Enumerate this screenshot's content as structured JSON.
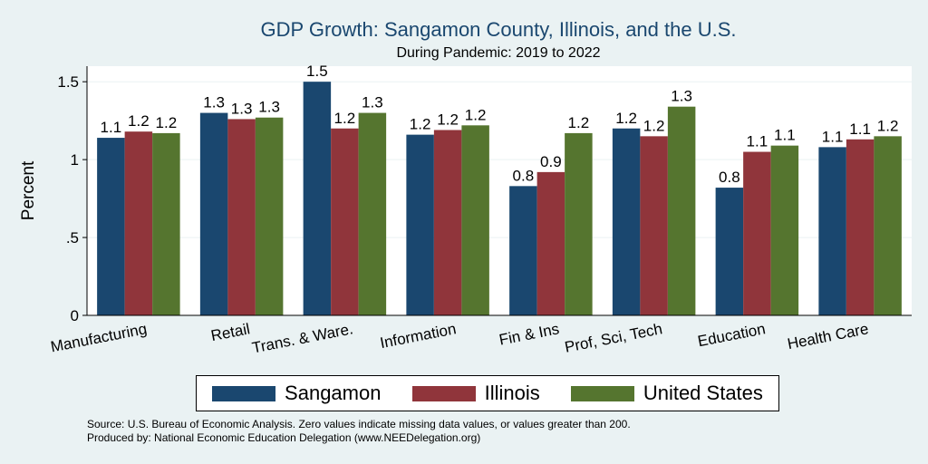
{
  "chart_data": {
    "type": "bar",
    "title": "GDP Growth: Sangamon County, Illinois, and the U.S.",
    "subtitle": "During Pandemic: 2019 to 2022",
    "ylabel": "Percent",
    "xlabel": "",
    "ylim": [
      0,
      1.6
    ],
    "yticks": [
      {
        "value": 0,
        "label": "0"
      },
      {
        "value": 0.5,
        "label": ".5"
      },
      {
        "value": 1,
        "label": "1"
      },
      {
        "value": 1.5,
        "label": "1.5"
      }
    ],
    "grid": true,
    "legend_position": "bottom",
    "categories": [
      "Manufacturing",
      "Retail",
      "Trans. & Ware.",
      "Information",
      "Fin & Ins",
      "Prof, Sci, Tech",
      "Education",
      "Health Care"
    ],
    "series": [
      {
        "name": "Sangamon",
        "color": "#1a476f",
        "values": [
          1.14,
          1.3,
          1.5,
          1.16,
          0.83,
          1.2,
          0.82,
          1.08
        ],
        "labels": [
          "1.1",
          "1.3",
          "1.5",
          "1.2",
          "0.8",
          "1.2",
          "0.8",
          "1.1"
        ]
      },
      {
        "name": "Illinois",
        "color": "#90353b",
        "values": [
          1.18,
          1.26,
          1.2,
          1.19,
          0.92,
          1.15,
          1.05,
          1.13
        ],
        "labels": [
          "1.2",
          "1.3",
          "1.2",
          "1.2",
          "0.9",
          "1.2",
          "1.1",
          "1.1"
        ]
      },
      {
        "name": "United States",
        "color": "#55752f",
        "values": [
          1.17,
          1.27,
          1.3,
          1.22,
          1.17,
          1.34,
          1.09,
          1.15
        ],
        "labels": [
          "1.2",
          "1.3",
          "1.3",
          "1.2",
          "1.2",
          "1.3",
          "1.1",
          "1.2"
        ]
      }
    ]
  },
  "footer": {
    "source_line": "Source: U.S. Bureau of Economic Analysis. Zero values indicate missing data values, or values greater than 200.",
    "produced_line": "Produced by: National Economic Education Delegation (www.NEEDelegation.org)"
  }
}
